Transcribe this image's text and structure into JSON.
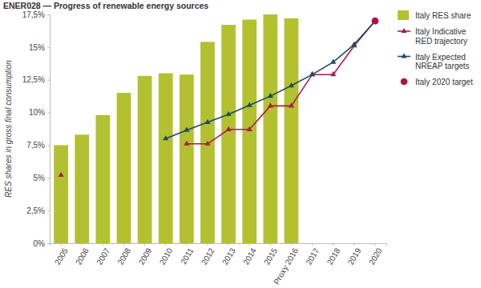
{
  "chart_data": {
    "type": "bar",
    "title": "ENER028 — Progress of renewable energy sources",
    "y_label": "RES shares in gross final consumption",
    "categories": [
      "2005",
      "2006",
      "2007",
      "2008",
      "2009",
      "2010",
      "2011",
      "2012",
      "2013",
      "2014",
      "2015",
      "Proxy 2016",
      "2017",
      "2018",
      "2019",
      "2020"
    ],
    "series": [
      {
        "name": "Italy RES share",
        "type": "bar",
        "color": "#b3c130",
        "values": [
          7.5,
          8.3,
          9.8,
          11.5,
          12.8,
          13.0,
          12.9,
          15.4,
          16.7,
          17.1,
          17.5,
          17.2,
          null,
          null,
          null,
          null
        ]
      },
      {
        "name": "Italy Indicative RED trajectory",
        "type": "line",
        "color": "#b0194a",
        "marker": "triangle",
        "values": [
          5.2,
          null,
          null,
          null,
          null,
          null,
          7.6,
          7.6,
          8.7,
          8.7,
          10.5,
          10.5,
          12.9,
          12.9,
          15.1,
          17.0
        ]
      },
      {
        "name": "Italy Expected NREAP targets",
        "type": "line",
        "color": "#1d4b63",
        "marker": "triangle",
        "values": [
          null,
          null,
          null,
          null,
          null,
          8.0,
          8.65,
          9.25,
          9.85,
          10.55,
          11.25,
          12.05,
          12.9,
          13.85,
          15.2,
          17.0
        ]
      },
      {
        "name": "Italy 2020 target",
        "type": "scatter",
        "color": "#b0124a",
        "marker": "circle",
        "values": [
          null,
          null,
          null,
          null,
          null,
          null,
          null,
          null,
          null,
          null,
          null,
          null,
          null,
          null,
          null,
          17.0
        ]
      }
    ],
    "ylim": [
      0,
      17.5
    ],
    "yticks": [
      {
        "value": 0,
        "label": "0%"
      },
      {
        "value": 2.5,
        "label": "2,5%"
      },
      {
        "value": 5,
        "label": "5%"
      },
      {
        "value": 7.5,
        "label": "7,5%"
      },
      {
        "value": 10,
        "label": "10%"
      },
      {
        "value": 12.5,
        "label": "12,5%"
      },
      {
        "value": 15,
        "label": "15%"
      },
      {
        "value": 17.5,
        "label": "17,5%"
      }
    ],
    "grid": false,
    "legend": "right"
  }
}
